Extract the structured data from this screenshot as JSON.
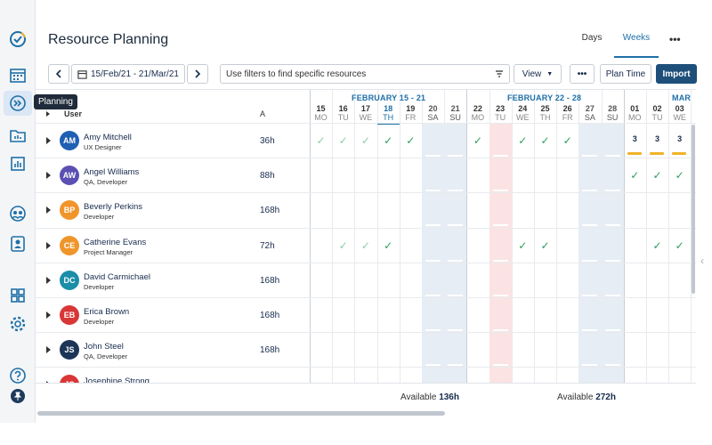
{
  "app_title": "Resource Planning",
  "view_tabs": [
    {
      "label": "Days"
    },
    {
      "label": "Weeks"
    }
  ],
  "tooltip": "Planning",
  "toolbar": {
    "date_range": "15/Feb/21 - 21/Mar/21",
    "filter_placeholder": "Use filters to find specific resources",
    "view_label": "View",
    "plan_time_label": "Plan Time",
    "import_label": "Import",
    "more_label": "•••"
  },
  "grid": {
    "user_header": "User",
    "avail_header": "A",
    "months": [
      "FEBRUARY 15 - 21",
      "FEBRUARY 22 - 28",
      "MAR"
    ],
    "days": [
      {
        "num": "15",
        "name": "MO"
      },
      {
        "num": "16",
        "name": "TU"
      },
      {
        "num": "17",
        "name": "WE"
      },
      {
        "num": "18",
        "name": "TH"
      },
      {
        "num": "19",
        "name": "FR"
      },
      {
        "num": "20",
        "name": "SA"
      },
      {
        "num": "21",
        "name": "SU"
      },
      {
        "num": "22",
        "name": "MO"
      },
      {
        "num": "23",
        "name": "TU"
      },
      {
        "num": "24",
        "name": "WE"
      },
      {
        "num": "25",
        "name": "TH"
      },
      {
        "num": "26",
        "name": "FR"
      },
      {
        "num": "27",
        "name": "SA"
      },
      {
        "num": "28",
        "name": "SU"
      },
      {
        "num": "01",
        "name": "MO"
      },
      {
        "num": "02",
        "name": "TU"
      },
      {
        "num": "03",
        "name": "WE"
      }
    ]
  },
  "resources": [
    {
      "initials": "AM",
      "name": "Amy Mitchell",
      "role": "UX Designer",
      "hours": "36h",
      "color": "#1f5fb4"
    },
    {
      "initials": "AW",
      "name": "Angel Williams",
      "role": "QA, Developer",
      "hours": "88h",
      "color": "#5b4fb3"
    },
    {
      "initials": "BP",
      "name": "Beverly Perkins",
      "role": "Developer",
      "hours": "168h",
      "color": "#f0952a"
    },
    {
      "initials": "CE",
      "name": "Catherine Evans",
      "role": "Project Manager",
      "hours": "72h",
      "color": "#f0952a"
    },
    {
      "initials": "DC",
      "name": "David Carmichael",
      "role": "Developer",
      "hours": "168h",
      "color": "#1b8ea8"
    },
    {
      "initials": "EB",
      "name": "Erica Brown",
      "role": "Developer",
      "hours": "168h",
      "color": "#d93636"
    },
    {
      "initials": "JS",
      "name": "John Steel",
      "role": "QA, Developer",
      "hours": "168h",
      "color": "#1c3556"
    },
    {
      "initials": "JS",
      "name": "Josephine Strong",
      "role": "",
      "hours": "",
      "color": "#d93636"
    }
  ],
  "checks": {
    "0": {
      "full": [
        3,
        4,
        7,
        9,
        10,
        11
      ],
      "part": [
        0,
        1,
        2
      ],
      "num3": [
        14,
        15,
        16
      ]
    },
    "1": {
      "full": [
        14,
        15,
        16
      ],
      "part": [],
      "num3": []
    },
    "3": {
      "full": [
        3,
        9,
        10,
        15,
        16
      ],
      "part": [
        1,
        2
      ],
      "num3": []
    }
  },
  "glyphs": {
    "check": "✓",
    "three": "3"
  },
  "footer": {
    "avail_label_1": "Available",
    "avail_value_1": "136h",
    "avail_label_2": "Available",
    "avail_value_2": "272h"
  }
}
